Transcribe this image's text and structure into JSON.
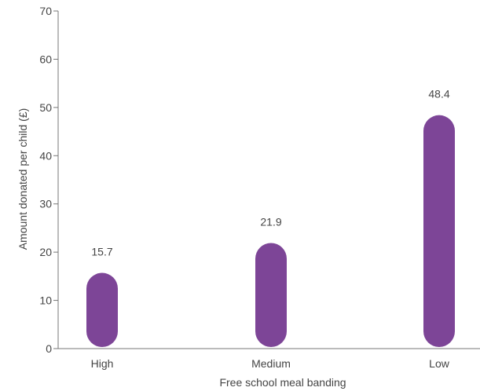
{
  "chart_data": {
    "type": "bar",
    "categories": [
      "High",
      "Medium",
      "Low"
    ],
    "values": [
      15.7,
      21.9,
      48.4
    ],
    "data_labels": [
      "15.7",
      "21.9",
      "48.4"
    ],
    "title": "",
    "xlabel": "Free school meal banding",
    "ylabel": "Amount donated per child (£)",
    "ylim": [
      0,
      70
    ],
    "yticks": [
      0,
      10,
      20,
      30,
      40,
      50,
      60,
      70
    ],
    "grid": false,
    "colors": {
      "bar": "#7d4597",
      "text": "#444444",
      "axis": "#777777"
    }
  }
}
